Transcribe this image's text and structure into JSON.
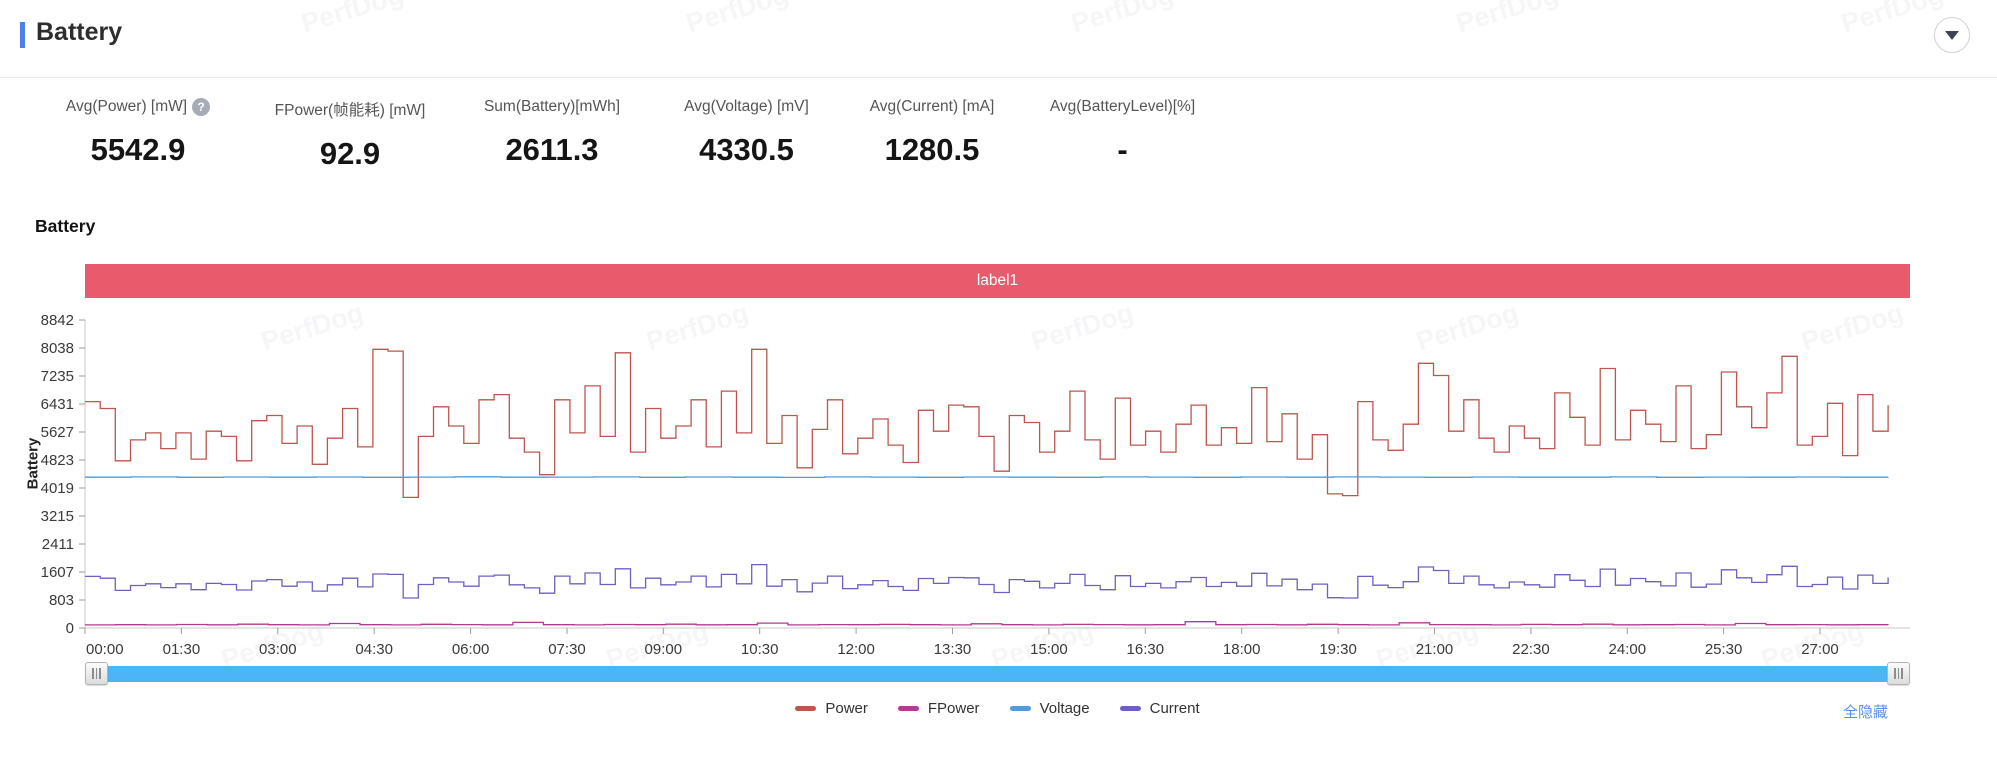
{
  "header": {
    "title": "Battery"
  },
  "stats": {
    "items": [
      {
        "label": "Avg(Power) [mW]",
        "value": "5542.9"
      },
      {
        "label": "FPower(帧能耗) [mW]",
        "value": "92.9"
      },
      {
        "label": "Sum(Battery)[mWh]",
        "value": "2611.3"
      },
      {
        "label": "Avg(Voltage) [mV]",
        "value": "4330.5"
      },
      {
        "label": "Avg(Current) [mA]",
        "value": "1280.5"
      },
      {
        "label": "Avg(BatteryLevel)[%]",
        "value": "-"
      }
    ]
  },
  "section": {
    "title": "Battery"
  },
  "chart_data": {
    "type": "line",
    "step": true,
    "grid": false,
    "title": "Battery",
    "banner_label": "label1",
    "ylabel": "Battery",
    "ylim": [
      0,
      8842
    ],
    "x_domain_minutes": [
      0,
      28.4
    ],
    "x_tick_interval_min": 1.5,
    "legend_position": "bottom",
    "y_ticks": [
      8842,
      8038,
      7235,
      6431,
      5627,
      4823,
      4019,
      3215,
      2411,
      1607,
      803,
      0
    ],
    "x_ticks": [
      "00:00",
      "01:30",
      "03:00",
      "04:30",
      "06:00",
      "07:30",
      "09:00",
      "10:30",
      "12:00",
      "13:30",
      "15:00",
      "16:30",
      "18:00",
      "19:30",
      "21:00",
      "22:30",
      "24:00",
      "25:30",
      "27:00"
    ],
    "series": [
      {
        "name": "Power",
        "color": "#bd564d",
        "values": [
          6500,
          6300,
          4800,
          5400,
          5600,
          5150,
          5600,
          4850,
          5650,
          5500,
          4800,
          5950,
          6100,
          5300,
          5800,
          4700,
          5450,
          6300,
          5200,
          8000,
          7950,
          3750,
          5500,
          6350,
          5800,
          5300,
          6550,
          6700,
          5450,
          5050,
          4400,
          6550,
          5600,
          6950,
          5500,
          7900,
          5050,
          6300,
          5450,
          5800,
          6550,
          5200,
          6800,
          5600,
          8000,
          5300,
          6100,
          4600,
          5700,
          6550,
          5000,
          5450,
          6000,
          5250,
          4750,
          6250,
          5650,
          6400,
          6350,
          5500,
          4500,
          6100,
          5900,
          5050,
          5650,
          6800,
          5400,
          4850,
          6600,
          5250,
          5650,
          5050,
          5850,
          6400,
          5250,
          5750,
          5300,
          6900,
          5350,
          6150,
          4850,
          5550,
          3850,
          3800,
          6500,
          5400,
          5100,
          5850,
          7600,
          7250,
          5650,
          6550,
          5450,
          5050,
          5800,
          5450,
          5150,
          6750,
          6050,
          5250,
          7450,
          5400,
          6250,
          5850,
          5350,
          6950,
          5150,
          5550,
          7350,
          6350,
          5750,
          6750,
          7800,
          5250,
          5500,
          6450,
          4950,
          6700,
          5650,
          6400
        ]
      },
      {
        "name": "FPower",
        "color": "#b23a92",
        "values": [
          90,
          95,
          88,
          100,
          92,
          110,
          96,
          88,
          130,
          94,
          90,
          105,
          98,
          92,
          160,
          96,
          90,
          100,
          94,
          108,
          92,
          96,
          140,
          90,
          98,
          94,
          102,
          96,
          88,
          120,
          95,
          90,
          104,
          98,
          92,
          96,
          180,
          94,
          100,
          92,
          106,
          96,
          90,
          150,
          98,
          94,
          88,
          102,
          96,
          110,
          92,
          96,
          100,
          88,
          130,
          94,
          98,
          92,
          96,
          90
        ]
      },
      {
        "name": "Voltage",
        "color": "#4f9bdd",
        "values": [
          4330,
          4338,
          4326,
          4334,
          4329,
          4336,
          4325,
          4333,
          4340,
          4328,
          4331,
          4337,
          4327,
          4335,
          4330,
          4324,
          4339,
          4332,
          4326,
          4336,
          4330,
          4327,
          4338,
          4331,
          4325,
          4334,
          4329,
          4337,
          4332,
          4326,
          4335,
          4330,
          4328,
          4338,
          4325,
          4333,
          4330,
          4336,
          4328,
          4332
        ]
      },
      {
        "name": "Current",
        "color": "#6f5fc5",
        "values": [
          1480,
          1430,
          1080,
          1220,
          1270,
          1160,
          1270,
          1100,
          1280,
          1250,
          1090,
          1350,
          1390,
          1200,
          1320,
          1060,
          1240,
          1430,
          1180,
          1550,
          1540,
          860,
          1250,
          1440,
          1320,
          1200,
          1490,
          1520,
          1240,
          1150,
          1000,
          1490,
          1270,
          1580,
          1250,
          1700,
          1150,
          1430,
          1240,
          1320,
          1490,
          1180,
          1540,
          1270,
          1820,
          1200,
          1390,
          1040,
          1290,
          1490,
          1130,
          1240,
          1360,
          1190,
          1080,
          1420,
          1280,
          1450,
          1440,
          1250,
          1020,
          1390,
          1340,
          1150,
          1280,
          1540,
          1220,
          1100,
          1500,
          1190,
          1280,
          1150,
          1330,
          1450,
          1190,
          1310,
          1200,
          1570,
          1210,
          1400,
          1100,
          1260,
          870,
          860,
          1480,
          1230,
          1160,
          1330,
          1750,
          1650,
          1280,
          1490,
          1240,
          1150,
          1320,
          1240,
          1170,
          1530,
          1370,
          1190,
          1690,
          1230,
          1420,
          1330,
          1210,
          1580,
          1170,
          1260,
          1670,
          1440,
          1310,
          1530,
          1770,
          1190,
          1250,
          1460,
          1120,
          1520,
          1280,
          1450
        ]
      }
    ]
  },
  "legend": {
    "hide_all_label": "全隐藏"
  },
  "watermark": {
    "text": "PerfDog"
  }
}
